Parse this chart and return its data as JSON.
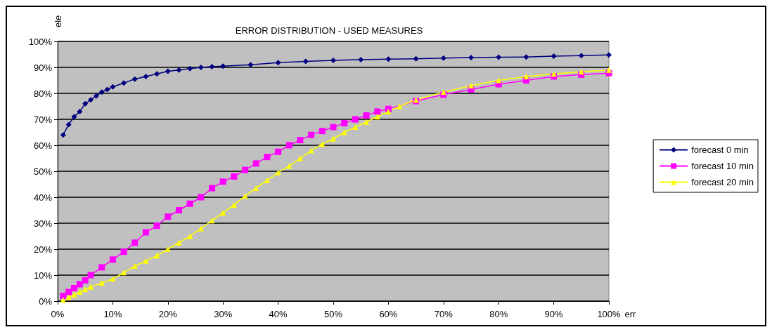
{
  "chart_data": {
    "type": "line",
    "title": "ERROR DISTRIBUTION - USED MEASURES",
    "xlabel": "err",
    "ylabel": "ele",
    "xlim": [
      0,
      100
    ],
    "ylim": [
      0,
      100
    ],
    "xticks": [
      {
        "value": 0,
        "label": "0%"
      },
      {
        "value": 10,
        "label": "10%"
      },
      {
        "value": 20,
        "label": "20%"
      },
      {
        "value": 30,
        "label": "30%"
      },
      {
        "value": 40,
        "label": "40%"
      },
      {
        "value": 50,
        "label": "50%"
      },
      {
        "value": 60,
        "label": "60%"
      },
      {
        "value": 70,
        "label": "70%"
      },
      {
        "value": 80,
        "label": "80%"
      },
      {
        "value": 90,
        "label": "90%"
      },
      {
        "value": 100,
        "label": "100%"
      }
    ],
    "yticks": [
      {
        "value": 0,
        "label": "0%"
      },
      {
        "value": 10,
        "label": "10%"
      },
      {
        "value": 20,
        "label": "20%"
      },
      {
        "value": 30,
        "label": "30%"
      },
      {
        "value": 40,
        "label": "40%"
      },
      {
        "value": 50,
        "label": "50%"
      },
      {
        "value": 60,
        "label": "60%"
      },
      {
        "value": 70,
        "label": "70%"
      },
      {
        "value": 80,
        "label": "80%"
      },
      {
        "value": 90,
        "label": "90%"
      },
      {
        "value": 100,
        "label": "100%"
      }
    ],
    "grid": "y",
    "legend": "right",
    "line_style": "solid",
    "series": [
      {
        "name": "forecast 0 min",
        "color": "#000080",
        "marker": "diamond",
        "x": [
          1,
          2,
          3,
          4,
          5,
          6,
          7,
          8,
          9,
          10,
          12,
          14,
          16,
          18,
          20,
          22,
          24,
          26,
          28,
          30,
          35,
          40,
          45,
          50,
          55,
          60,
          65,
          70,
          75,
          80,
          85,
          90,
          95,
          100
        ],
        "values": [
          64,
          68,
          71,
          73,
          76,
          77.5,
          79,
          80.5,
          81.5,
          82.5,
          84,
          85.5,
          86.5,
          87.5,
          88.5,
          89,
          89.5,
          90,
          90.3,
          90.5,
          91,
          91.8,
          92.3,
          92.7,
          93,
          93.2,
          93.3,
          93.6,
          93.8,
          93.9,
          94,
          94.3,
          94.5,
          94.8
        ]
      },
      {
        "name": "forecast 10 min",
        "color": "#ff00ff",
        "marker": "square",
        "x": [
          1,
          2,
          3,
          4,
          5,
          6,
          8,
          10,
          12,
          14,
          16,
          18,
          20,
          22,
          24,
          26,
          28,
          30,
          32,
          34,
          36,
          38,
          40,
          42,
          44,
          46,
          48,
          50,
          52,
          54,
          56,
          58,
          60,
          65,
          70,
          75,
          80,
          85,
          90,
          95,
          100
        ],
        "values": [
          2,
          3.5,
          5,
          6.5,
          8,
          10,
          13,
          16,
          19,
          22.5,
          26.5,
          29,
          32.5,
          35,
          37.5,
          40,
          43.5,
          46,
          48,
          50.5,
          53,
          55.5,
          57.5,
          60,
          62,
          64,
          65.5,
          67,
          68.5,
          70,
          71.5,
          73,
          74,
          77,
          79.5,
          81.5,
          83.5,
          85,
          86.5,
          87.2,
          87.8
        ]
      },
      {
        "name": "forecast 20 min",
        "color": "#ffff00",
        "marker": "triangle",
        "x": [
          1,
          2,
          3,
          4,
          5,
          6,
          8,
          10,
          12,
          14,
          16,
          18,
          20,
          22,
          24,
          26,
          28,
          30,
          32,
          34,
          36,
          38,
          40,
          42,
          44,
          46,
          48,
          50,
          52,
          54,
          56,
          58,
          60,
          62,
          65,
          70,
          75,
          80,
          85,
          90,
          95,
          100
        ],
        "values": [
          0.5,
          1.5,
          2.5,
          3.5,
          4.5,
          5.5,
          7,
          8.5,
          11,
          13.5,
          15.5,
          17.5,
          20,
          22.5,
          25,
          28,
          31,
          34,
          37,
          40.5,
          43.5,
          46.5,
          49.5,
          52,
          55,
          58,
          60.5,
          62.5,
          65,
          67,
          69,
          71,
          73,
          75,
          77.5,
          80.5,
          83,
          85,
          86.5,
          87.5,
          88.3,
          89
        ]
      }
    ]
  }
}
